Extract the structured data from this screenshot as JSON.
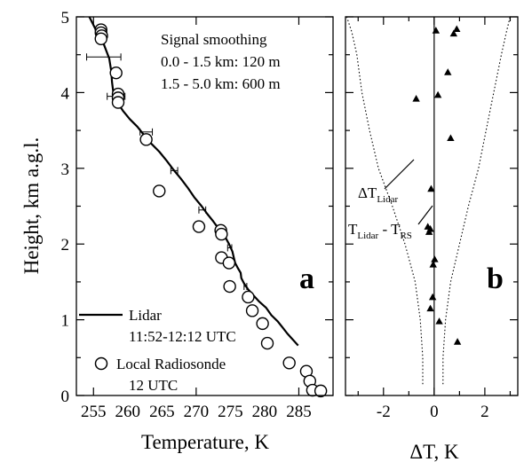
{
  "chart_data": [
    {
      "panel_label": "a",
      "type": "line",
      "xlabel": "Temperature, K",
      "ylabel": "Height, km a.g.l.",
      "xlim": [
        252.5,
        290
      ],
      "ylim": [
        0,
        5
      ],
      "xticks": [
        255,
        270,
        285
      ],
      "xtick_labels": [
        "255",
        "260",
        "265",
        "270",
        "275",
        "280",
        "285"
      ],
      "xtick_label_values": [
        255,
        260,
        265,
        270,
        275,
        280,
        285
      ],
      "yticks": [
        0,
        0.5,
        1,
        1.5,
        2,
        2.5,
        3,
        3.5,
        4,
        4.5,
        5
      ],
      "ytick_labels": [
        "0",
        "1",
        "2",
        "3",
        "4",
        "5"
      ],
      "ytick_label_values": [
        0,
        1,
        2,
        3,
        4,
        5
      ],
      "annotation": [
        "Signal smoothing",
        "0.0 - 1.5 km: 120 m",
        "1.5 - 5.0 km: 600 m"
      ],
      "legend": {
        "placement": "bottom-left",
        "entries": [
          {
            "marker": "line",
            "text": [
              "Lidar",
              "11:52-12:12 UTC"
            ]
          },
          {
            "marker": "circle",
            "text": [
              "Local Radiosonde",
              "12 UTC"
            ]
          }
        ]
      },
      "series": [
        {
          "name": "Lidar",
          "style": "line",
          "x": [
            254.4,
            255.4,
            256.5,
            257.3,
            257.6,
            257.7,
            257.9,
            258.5,
            259.3,
            260.3,
            261.4,
            262.3,
            263.3,
            264.6,
            265.7,
            266.7,
            267.8,
            268.8,
            269.7,
            270.8,
            271.6,
            272.5,
            273.3,
            274.2,
            274.8,
            275.3,
            275.5,
            275.7,
            276.1,
            276.5,
            276.6,
            277.0,
            277.6,
            278.4,
            279.2,
            280.2,
            281.0,
            281.9,
            282.6,
            283.3,
            283.9,
            284.5,
            284.9
          ],
          "y": [
            5.0,
            4.82,
            4.64,
            4.45,
            4.28,
            4.14,
            4.0,
            3.87,
            3.76,
            3.65,
            3.55,
            3.45,
            3.34,
            3.22,
            3.1,
            2.98,
            2.86,
            2.74,
            2.62,
            2.5,
            2.4,
            2.3,
            2.2,
            2.1,
            2.0,
            1.9,
            1.82,
            1.75,
            1.68,
            1.62,
            1.55,
            1.48,
            1.4,
            1.32,
            1.24,
            1.16,
            1.06,
            0.98,
            0.9,
            0.82,
            0.76,
            0.7,
            0.66
          ]
        },
        {
          "name": "Local Radiosonde",
          "style": "circle",
          "x": [
            256.1,
            256.1,
            256.2,
            256.1,
            258.3,
            258.6,
            258.6,
            258.6,
            262.7,
            264.6,
            270.4,
            273.6,
            273.7,
            273.7,
            274.8,
            274.9,
            277.6,
            278.2,
            279.7,
            280.4,
            283.6,
            286.1,
            286.6,
            287.0,
            288.2
          ],
          "y": [
            4.83,
            4.79,
            4.75,
            4.71,
            4.26,
            3.98,
            3.93,
            3.87,
            3.38,
            2.7,
            2.23,
            2.18,
            2.13,
            1.82,
            1.75,
            1.44,
            1.3,
            1.12,
            0.95,
            0.69,
            0.43,
            0.32,
            0.19,
            0.07,
            0.06
          ]
        }
      ],
      "error_bars_x": [
        {
          "y": 4.47,
          "center": 256.5,
          "half_width": 2.5
        },
        {
          "y": 3.95,
          "center": 258.3,
          "half_width": 1.3
        },
        {
          "y": 3.48,
          "center": 262.7,
          "half_width": 0.9
        },
        {
          "y": 2.97,
          "center": 266.8,
          "half_width": 0.5
        },
        {
          "y": 2.45,
          "center": 270.9,
          "half_width": 0.5
        },
        {
          "y": 1.95,
          "center": 274.9,
          "half_width": 0.3
        },
        {
          "y": 1.44,
          "center": 277.2,
          "half_width": 0.2
        }
      ]
    },
    {
      "panel_label": "b",
      "type": "scatter",
      "xlabel": "ΔT, K",
      "xlim": [
        -3.5,
        3.3
      ],
      "ylim": [
        0,
        5
      ],
      "xticks": [
        -2,
        0,
        2
      ],
      "xtick_labels": [
        "-2",
        "0",
        "2"
      ],
      "xtick_label_values": [
        -2,
        0,
        2
      ],
      "zero_line": 0,
      "annotations": [
        {
          "base": "ΔT",
          "sub": "Lidar"
        },
        {
          "base": "T",
          "sub": "Lidar",
          "mid": " - T",
          "sub2": "RS"
        }
      ],
      "series": [
        {
          "name": "T_Lidar - T_RS",
          "style": "triangle",
          "x": [
            0.07,
            0.77,
            0.89,
            0.54,
            -0.71,
            0.15,
            0.65,
            -0.12,
            -0.25,
            -0.15,
            -0.2,
            0.02,
            -0.04,
            -0.06,
            -0.15,
            0.2,
            0.92
          ],
          "y": [
            4.82,
            4.78,
            4.84,
            4.27,
            3.92,
            3.97,
            3.4,
            2.73,
            2.23,
            2.2,
            2.16,
            1.8,
            1.73,
            1.3,
            1.15,
            0.98,
            0.71
          ]
        },
        {
          "name": "ΔT_Lidar",
          "style": "dotted",
          "x_minus": [
            -0.45,
            -0.45,
            -0.55,
            -0.75,
            -1.15,
            -1.65,
            -2.2,
            -2.55,
            -2.85,
            -3.05,
            -3.25,
            -3.45
          ],
          "x_plus": [
            0.35,
            0.35,
            0.45,
            0.65,
            1.0,
            1.35,
            1.75,
            2.05,
            2.35,
            2.65,
            2.85,
            3.0
          ],
          "y": [
            0.15,
            0.5,
            1.0,
            1.5,
            2.0,
            2.5,
            3.0,
            3.5,
            4.0,
            4.5,
            4.8,
            5.0
          ]
        }
      ]
    }
  ]
}
